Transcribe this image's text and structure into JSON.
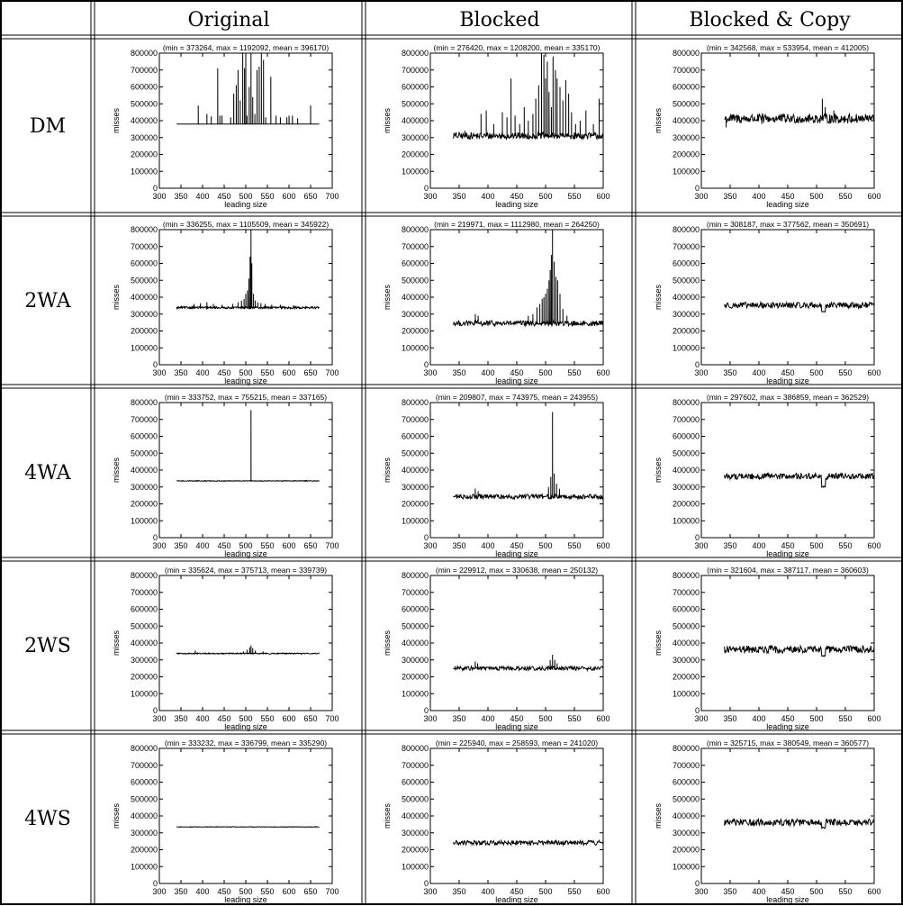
{
  "table": {
    "columns": [
      "Original",
      "Blocked",
      "Blocked & Copy"
    ],
    "rows": [
      "DM",
      "2WA",
      "4WA",
      "2WS",
      "4WS"
    ]
  },
  "chart_data": [
    {
      "type": "line",
      "row": "DM",
      "column": "Original",
      "title": "(min = 373264, max = 1192092, mean = 396170)",
      "xlabel": "leading size",
      "ylabel": "misses",
      "xlim": [
        300,
        700
      ],
      "ylim": [
        0,
        800000
      ],
      "xticks": [
        300,
        350,
        400,
        450,
        500,
        550,
        600,
        650,
        700
      ],
      "yticks": [
        0,
        100000,
        200000,
        300000,
        400000,
        500000,
        600000,
        700000,
        800000
      ],
      "x_range": [
        340,
        670
      ],
      "min": 373264,
      "max": 1192092,
      "mean": 396170,
      "baseline": 380000,
      "peaks": [
        [
          390,
          490000
        ],
        [
          410,
          440000
        ],
        [
          420,
          425000
        ],
        [
          435,
          710000
        ],
        [
          440,
          430000
        ],
        [
          445,
          430000
        ],
        [
          465,
          420000
        ],
        [
          472,
          560000
        ],
        [
          478,
          610000
        ],
        [
          482,
          700000
        ],
        [
          487,
          520000
        ],
        [
          493,
          800000
        ],
        [
          497,
          710000
        ],
        [
          500,
          800000
        ],
        [
          503,
          430000
        ],
        [
          508,
          600000
        ],
        [
          512,
          800000
        ],
        [
          516,
          540000
        ],
        [
          521,
          440000
        ],
        [
          526,
          700000
        ],
        [
          531,
          720000
        ],
        [
          536,
          800000
        ],
        [
          541,
          760000
        ],
        [
          546,
          420000
        ],
        [
          558,
          660000
        ],
        [
          570,
          430000
        ],
        [
          580,
          420000
        ],
        [
          595,
          420000
        ],
        [
          600,
          430000
        ],
        [
          608,
          430000
        ],
        [
          620,
          415000
        ],
        [
          650,
          490000
        ]
      ]
    },
    {
      "type": "line",
      "row": "DM",
      "column": "Blocked",
      "title": "(min = 276420, max = 1208200, mean = 335170)",
      "xlabel": "leading size",
      "ylabel": "misses",
      "xlim": [
        300,
        600
      ],
      "ylim": [
        0,
        800000
      ],
      "xticks": [
        300,
        350,
        400,
        450,
        500,
        550,
        600
      ],
      "yticks": [
        0,
        100000,
        200000,
        300000,
        400000,
        500000,
        600000,
        700000,
        800000
      ],
      "x_range": [
        340,
        600
      ],
      "min": 276420,
      "max": 1208200,
      "mean": 335170,
      "baseline": 310000,
      "noise": 20000,
      "peaks": [
        [
          345,
          330000
        ],
        [
          360,
          340000
        ],
        [
          388,
          440000
        ],
        [
          397,
          460000
        ],
        [
          410,
          380000
        ],
        [
          425,
          450000
        ],
        [
          433,
          420000
        ],
        [
          440,
          650000
        ],
        [
          447,
          430000
        ],
        [
          455,
          380000
        ],
        [
          463,
          480000
        ],
        [
          470,
          400000
        ],
        [
          478,
          440000
        ],
        [
          483,
          530000
        ],
        [
          488,
          610000
        ],
        [
          493,
          800000
        ],
        [
          497,
          790000
        ],
        [
          500,
          650000
        ],
        [
          503,
          750000
        ],
        [
          506,
          570000
        ],
        [
          510,
          480000
        ],
        [
          513,
          780000
        ],
        [
          517,
          700000
        ],
        [
          520,
          650000
        ],
        [
          525,
          600000
        ],
        [
          530,
          520000
        ],
        [
          535,
          640000
        ],
        [
          540,
          560000
        ],
        [
          545,
          450000
        ],
        [
          552,
          380000
        ],
        [
          560,
          400000
        ],
        [
          570,
          460000
        ],
        [
          583,
          380000
        ],
        [
          593,
          530000
        ]
      ]
    },
    {
      "type": "line",
      "row": "DM",
      "column": "Blocked & Copy",
      "title": "(min = 342568, max = 533954, mean = 412005)",
      "xlabel": "leading size",
      "ylabel": "misses",
      "xlim": [
        300,
        600
      ],
      "ylim": [
        0,
        800000
      ],
      "xticks": [
        300,
        350,
        400,
        450,
        500,
        550,
        600
      ],
      "yticks": [
        0,
        100000,
        200000,
        300000,
        400000,
        500000,
        600000,
        700000,
        800000
      ],
      "x_range": [
        340,
        600
      ],
      "min": 342568,
      "max": 533954,
      "mean": 412005,
      "baseline": 412000,
      "noise": 28000,
      "peaks": [
        [
          343,
          360000
        ],
        [
          405,
          380000
        ],
        [
          510,
          530000
        ],
        [
          515,
          480000
        ],
        [
          530,
          460000
        ]
      ]
    },
    {
      "type": "line",
      "row": "2WA",
      "column": "Original",
      "title": "(min = 336255, max = 1105509, mean = 345922)",
      "xlabel": "leading size",
      "ylabel": "misses",
      "xlim": [
        300,
        700
      ],
      "ylim": [
        0,
        800000
      ],
      "xticks": [
        300,
        350,
        400,
        450,
        500,
        550,
        600,
        650,
        700
      ],
      "yticks": [
        0,
        100000,
        200000,
        300000,
        400000,
        500000,
        600000,
        700000,
        800000
      ],
      "x_range": [
        340,
        670
      ],
      "min": 336255,
      "max": 1105509,
      "mean": 345922,
      "baseline": 338000,
      "noise": 6000,
      "peaks": [
        [
          380,
          360000
        ],
        [
          395,
          365000
        ],
        [
          410,
          370000
        ],
        [
          425,
          360000
        ],
        [
          445,
          355000
        ],
        [
          470,
          360000
        ],
        [
          482,
          370000
        ],
        [
          490,
          380000
        ],
        [
          496,
          390000
        ],
        [
          500,
          420000
        ],
        [
          504,
          440000
        ],
        [
          507,
          510000
        ],
        [
          510,
          640000
        ],
        [
          512,
          800000
        ],
        [
          514,
          600000
        ],
        [
          518,
          420000
        ],
        [
          522,
          380000
        ],
        [
          528,
          370000
        ],
        [
          535,
          365000
        ],
        [
          545,
          360000
        ],
        [
          560,
          355000
        ],
        [
          580,
          355000
        ],
        [
          610,
          352000
        ]
      ]
    },
    {
      "type": "line",
      "row": "2WA",
      "column": "Blocked",
      "title": "(min = 219971, max = 1112980, mean = 264250)",
      "xlabel": "leading size",
      "ylabel": "misses",
      "xlim": [
        300,
        600
      ],
      "ylim": [
        0,
        800000
      ],
      "xticks": [
        300,
        350,
        400,
        450,
        500,
        550,
        600
      ],
      "yticks": [
        0,
        100000,
        200000,
        300000,
        400000,
        500000,
        600000,
        700000,
        800000
      ],
      "x_range": [
        340,
        600
      ],
      "min": 219971,
      "max": 1112980,
      "mean": 264250,
      "baseline": 245000,
      "noise": 16000,
      "peaks": [
        [
          378,
          300000
        ],
        [
          383,
          290000
        ],
        [
          470,
          290000
        ],
        [
          478,
          300000
        ],
        [
          485,
          340000
        ],
        [
          490,
          360000
        ],
        [
          494,
          390000
        ],
        [
          497,
          400000
        ],
        [
          500,
          420000
        ],
        [
          503,
          450000
        ],
        [
          506,
          500000
        ],
        [
          508,
          560000
        ],
        [
          510,
          650000
        ],
        [
          512,
          800000
        ],
        [
          515,
          610000
        ],
        [
          518,
          520000
        ],
        [
          521,
          500000
        ],
        [
          525,
          420000
        ],
        [
          530,
          330000
        ],
        [
          537,
          290000
        ]
      ]
    },
    {
      "type": "line",
      "row": "2WA",
      "column": "Blocked & Copy",
      "title": "(min = 308187, max = 377562, mean = 350691)",
      "xlabel": "leading size",
      "ylabel": "misses",
      "xlim": [
        300,
        600
      ],
      "ylim": [
        0,
        800000
      ],
      "xticks": [
        300,
        350,
        400,
        450,
        500,
        550,
        600
      ],
      "yticks": [
        0,
        100000,
        200000,
        300000,
        400000,
        500000,
        600000,
        700000,
        800000
      ],
      "x_range": [
        340,
        600
      ],
      "min": 308187,
      "max": 377562,
      "mean": 350691,
      "baseline": 352000,
      "noise": 18000,
      "dip": [
        512,
        315000
      ],
      "peaks": []
    },
    {
      "type": "line",
      "row": "4WA",
      "column": "Original",
      "title": "(min = 333752, max = 755215, mean = 337165)",
      "xlabel": "leading size",
      "ylabel": "misses",
      "xlim": [
        300,
        700
      ],
      "ylim": [
        0,
        800000
      ],
      "xticks": [
        300,
        350,
        400,
        450,
        500,
        550,
        600,
        650,
        700
      ],
      "yticks": [
        0,
        100000,
        200000,
        300000,
        400000,
        500000,
        600000,
        700000,
        800000
      ],
      "x_range": [
        340,
        670
      ],
      "min": 333752,
      "max": 755215,
      "mean": 337165,
      "baseline": 336000,
      "noise": 2000,
      "peaks": [
        [
          385,
          342000
        ],
        [
          512,
          755215
        ],
        [
          640,
          342000
        ]
      ]
    },
    {
      "type": "line",
      "row": "4WA",
      "column": "Blocked",
      "title": "(min = 209807, max = 743975, mean = 243955)",
      "xlabel": "leading size",
      "ylabel": "misses",
      "xlim": [
        300,
        600
      ],
      "ylim": [
        0,
        800000
      ],
      "xticks": [
        300,
        350,
        400,
        450,
        500,
        550,
        600
      ],
      "yticks": [
        0,
        100000,
        200000,
        300000,
        400000,
        500000,
        600000,
        700000,
        800000
      ],
      "x_range": [
        340,
        600
      ],
      "min": 209807,
      "max": 743975,
      "mean": 243955,
      "baseline": 243000,
      "noise": 14000,
      "peaks": [
        [
          378,
          290000
        ],
        [
          383,
          275000
        ],
        [
          505,
          300000
        ],
        [
          509,
          360000
        ],
        [
          512,
          743975
        ],
        [
          515,
          380000
        ],
        [
          519,
          320000
        ],
        [
          524,
          290000
        ]
      ]
    },
    {
      "type": "line",
      "row": "4WA",
      "column": "Blocked & Copy",
      "title": "(min = 297602, max = 386859, mean = 362529)",
      "xlabel": "leading size",
      "ylabel": "misses",
      "xlim": [
        300,
        600
      ],
      "ylim": [
        0,
        800000
      ],
      "xticks": [
        300,
        350,
        400,
        450,
        500,
        550,
        600
      ],
      "yticks": [
        0,
        100000,
        200000,
        300000,
        400000,
        500000,
        600000,
        700000,
        800000
      ],
      "x_range": [
        340,
        600
      ],
      "min": 297602,
      "max": 386859,
      "mean": 362529,
      "baseline": 363000,
      "noise": 18000,
      "dip": [
        512,
        300000
      ],
      "peaks": []
    },
    {
      "type": "line",
      "row": "2WS",
      "column": "Original",
      "title": "(min = 335624, max = 375713, mean = 339739)",
      "xlabel": "leading size",
      "ylabel": "misses",
      "xlim": [
        300,
        700
      ],
      "ylim": [
        0,
        800000
      ],
      "xticks": [
        300,
        350,
        400,
        450,
        500,
        550,
        600,
        650,
        700
      ],
      "yticks": [
        0,
        100000,
        200000,
        300000,
        400000,
        500000,
        600000,
        700000,
        800000
      ],
      "x_range": [
        340,
        670
      ],
      "min": 335624,
      "max": 375713,
      "mean": 339739,
      "baseline": 338000,
      "noise": 3000,
      "peaks": [
        [
          383,
          355000
        ],
        [
          495,
          350000
        ],
        [
          503,
          360000
        ],
        [
          509,
          375000
        ],
        [
          512,
          385000
        ],
        [
          516,
          370000
        ],
        [
          522,
          355000
        ],
        [
          540,
          350000
        ]
      ]
    },
    {
      "type": "line",
      "row": "2WS",
      "column": "Blocked",
      "title": "(min = 229912, max = 330638, mean = 250132)",
      "xlabel": "leading size",
      "ylabel": "misses",
      "xlim": [
        300,
        600
      ],
      "ylim": [
        0,
        800000
      ],
      "xticks": [
        300,
        350,
        400,
        450,
        500,
        550,
        600
      ],
      "yticks": [
        0,
        100000,
        200000,
        300000,
        400000,
        500000,
        600000,
        700000,
        800000
      ],
      "x_range": [
        340,
        600
      ],
      "min": 229912,
      "max": 330638,
      "mean": 250132,
      "baseline": 250000,
      "noise": 12000,
      "peaks": [
        [
          378,
          290000
        ],
        [
          382,
          280000
        ],
        [
          508,
          300000
        ],
        [
          512,
          330638
        ],
        [
          516,
          300000
        ],
        [
          520,
          280000
        ]
      ]
    },
    {
      "type": "line",
      "row": "2WS",
      "column": "Blocked & Copy",
      "title": "(min = 321604, max = 387117, mean = 360603)",
      "xlabel": "leading size",
      "ylabel": "misses",
      "xlim": [
        300,
        600
      ],
      "ylim": [
        0,
        800000
      ],
      "xticks": [
        300,
        350,
        400,
        450,
        500,
        550,
        600
      ],
      "yticks": [
        0,
        100000,
        200000,
        300000,
        400000,
        500000,
        600000,
        700000,
        800000
      ],
      "x_range": [
        340,
        600
      ],
      "min": 321604,
      "max": 387117,
      "mean": 360603,
      "baseline": 362000,
      "noise": 22000,
      "dip": [
        512,
        325000
      ],
      "peaks": []
    },
    {
      "type": "line",
      "row": "4WS",
      "column": "Original",
      "title": "(min = 333232, max = 336799, mean = 335290)",
      "xlabel": "leading size",
      "ylabel": "misses",
      "xlim": [
        300,
        700
      ],
      "ylim": [
        0,
        800000
      ],
      "xticks": [
        300,
        350,
        400,
        450,
        500,
        550,
        600,
        650,
        700
      ],
      "yticks": [
        0,
        100000,
        200000,
        300000,
        400000,
        500000,
        600000,
        700000,
        800000
      ],
      "x_range": [
        340,
        670
      ],
      "min": 333232,
      "max": 336799,
      "mean": 335290,
      "baseline": 335000,
      "noise": 1500,
      "peaks": []
    },
    {
      "type": "line",
      "row": "4WS",
      "column": "Blocked",
      "title": "(min = 225940, max = 258593, mean = 241020)",
      "xlabel": "leading size",
      "ylabel": "misses",
      "xlim": [
        300,
        600
      ],
      "ylim": [
        0,
        800000
      ],
      "xticks": [
        300,
        350,
        400,
        450,
        500,
        550,
        600
      ],
      "yticks": [
        0,
        100000,
        200000,
        300000,
        400000,
        500000,
        600000,
        700000,
        800000
      ],
      "x_range": [
        340,
        600
      ],
      "min": 225940,
      "max": 258593,
      "mean": 241020,
      "baseline": 241000,
      "noise": 14000,
      "peaks": []
    },
    {
      "type": "line",
      "row": "4WS",
      "column": "Blocked & Copy",
      "title": "(min = 325715, max = 380549, mean = 360577)",
      "xlabel": "leading size",
      "ylabel": "misses",
      "xlim": [
        300,
        600
      ],
      "ylim": [
        0,
        800000
      ],
      "xticks": [
        300,
        350,
        400,
        450,
        500,
        550,
        600
      ],
      "yticks": [
        0,
        100000,
        200000,
        300000,
        400000,
        500000,
        600000,
        700000,
        800000
      ],
      "x_range": [
        340,
        600
      ],
      "min": 325715,
      "max": 380549,
      "mean": 360577,
      "baseline": 362000,
      "noise": 20000,
      "dip": [
        512,
        330000
      ],
      "peaks": []
    }
  ]
}
